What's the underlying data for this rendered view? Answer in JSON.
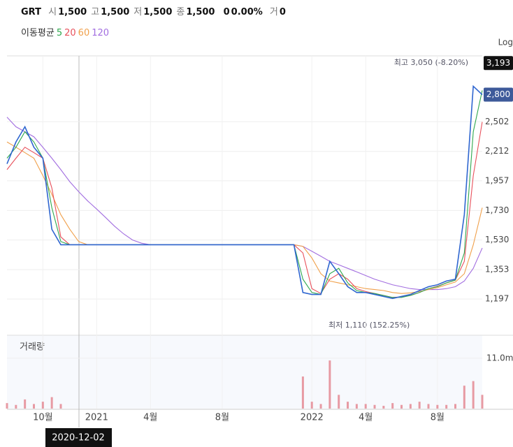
{
  "header": {
    "symbol": "GRT",
    "items": [
      {
        "label": "시",
        "value": "1,500"
      },
      {
        "label": "고",
        "value": "1,500"
      },
      {
        "label": "저",
        "value": "1,500"
      },
      {
        "label": "종",
        "value": "1,500"
      }
    ],
    "change": "0",
    "change_pct": "0.00%",
    "volume_label": "거",
    "volume": "0"
  },
  "chart_data": {
    "type": "line",
    "log_scale": true,
    "scale_label": "Log",
    "legend_title": "이동평균",
    "annotations": {
      "high": "최고 3,050 (-8.20%)",
      "low": "최저 1,110 (152.25%)",
      "crosshair": "2020-12-02"
    },
    "categories": [
      null,
      null,
      null,
      null,
      "10월",
      null,
      null,
      null,
      null,
      null,
      "2021",
      null,
      null,
      null,
      null,
      null,
      "4월",
      null,
      null,
      null,
      null,
      null,
      null,
      null,
      "8월",
      null,
      null,
      null,
      null,
      null,
      null,
      null,
      null,
      null,
      "2022",
      null,
      null,
      null,
      null,
      null,
      "4월",
      null,
      null,
      null,
      null,
      null,
      null,
      null,
      "8월",
      null,
      null,
      null,
      null,
      null
    ],
    "series": [
      {
        "color": "#2f66d0",
        "values": [
          2100,
          2300,
          2450,
          2250,
          2150,
          1600,
          1500,
          1500,
          1500,
          1500,
          1500,
          1500,
          1500,
          1500,
          1500,
          1500,
          1500,
          1500,
          1500,
          1500,
          1500,
          1500,
          1500,
          1500,
          1500,
          1500,
          1500,
          1500,
          1500,
          1500,
          1500,
          1500,
          1500,
          1230,
          1220,
          1220,
          1400,
          1330,
          1260,
          1230,
          1230,
          1220,
          1210,
          1200,
          1210,
          1220,
          1240,
          1260,
          1270,
          1290,
          1300,
          1700,
          2900,
          2800
        ]
      },
      {
        "name": "5",
        "color": "#2ea84f",
        "values": [
          2150,
          2250,
          2400,
          2300,
          2150,
          1750,
          1520,
          1500,
          1500,
          1500,
          1500,
          1500,
          1500,
          1500,
          1500,
          1500,
          1500,
          1500,
          1500,
          1500,
          1500,
          1500,
          1500,
          1500,
          1500,
          1500,
          1500,
          1500,
          1500,
          1500,
          1500,
          1500,
          1500,
          1300,
          1230,
          1220,
          1330,
          1360,
          1280,
          1240,
          1230,
          1225,
          1215,
          1205,
          1205,
          1215,
          1230,
          1250,
          1260,
          1280,
          1295,
          1450,
          2400,
          2850
        ]
      },
      {
        "name": "20",
        "color": "#e8505b",
        "values": [
          2050,
          2150,
          2250,
          2200,
          2150,
          1900,
          1550,
          1500,
          1500,
          1500,
          1500,
          1500,
          1500,
          1500,
          1500,
          1500,
          1500,
          1500,
          1500,
          1500,
          1500,
          1500,
          1500,
          1500,
          1500,
          1500,
          1500,
          1500,
          1500,
          1500,
          1500,
          1500,
          1500,
          1450,
          1250,
          1225,
          1300,
          1330,
          1300,
          1250,
          1235,
          1225,
          1215,
          1205,
          1208,
          1215,
          1230,
          1250,
          1262,
          1280,
          1295,
          1400,
          2000,
          2500
        ]
      },
      {
        "name": "60",
        "color": "#f0a04b",
        "values": [
          2300,
          2250,
          2200,
          2150,
          2000,
          1850,
          1700,
          1600,
          1520,
          1500,
          1500,
          1500,
          1500,
          1500,
          1500,
          1500,
          1500,
          1500,
          1500,
          1500,
          1500,
          1500,
          1500,
          1500,
          1500,
          1500,
          1500,
          1500,
          1500,
          1500,
          1500,
          1500,
          1500,
          1490,
          1420,
          1330,
          1290,
          1280,
          1270,
          1260,
          1250,
          1245,
          1240,
          1230,
          1225,
          1228,
          1235,
          1245,
          1255,
          1270,
          1285,
          1330,
          1500,
          1750
        ]
      },
      {
        "name": "120",
        "color": "#a26ee0",
        "values": [
          2550,
          2450,
          2400,
          2350,
          2250,
          2150,
          2050,
          1950,
          1870,
          1800,
          1740,
          1680,
          1620,
          1570,
          1530,
          1510,
          1500,
          1500,
          1500,
          1500,
          1500,
          1500,
          1500,
          1500,
          1500,
          1500,
          1500,
          1500,
          1500,
          1500,
          1500,
          1500,
          1500,
          1490,
          1460,
          1430,
          1400,
          1380,
          1360,
          1340,
          1320,
          1300,
          1285,
          1270,
          1260,
          1250,
          1245,
          1245,
          1245,
          1250,
          1260,
          1290,
          1360,
          1480
        ]
      },
      {
        "name": "거래량",
        "axis": "y2",
        "color": "#e79aa3",
        "values": [
          1.2,
          0.8,
          2,
          1,
          1.5,
          2.5,
          1,
          0,
          0,
          0,
          0,
          0,
          0,
          0,
          0,
          0,
          0,
          0,
          0,
          0,
          0,
          0,
          0,
          0,
          0,
          0,
          0,
          0,
          0,
          0,
          0,
          0,
          0,
          7,
          1.5,
          1,
          10.5,
          3,
          1.5,
          1,
          1,
          0.8,
          0.6,
          1.2,
          0.8,
          1,
          1.5,
          1,
          0.8,
          0.8,
          1,
          5,
          6,
          3
        ]
      }
    ],
    "ylim": [
      1060,
      3290
    ],
    "yticks": [
      {
        "value": 1197,
        "label": "1,197"
      },
      {
        "value": 1353,
        "label": "1,353"
      },
      {
        "value": 1530,
        "label": "1,530"
      },
      {
        "value": 1730,
        "label": "1,730"
      },
      {
        "value": 1957,
        "label": "1,957"
      },
      {
        "value": 2212,
        "label": "2,212"
      },
      {
        "value": 2502,
        "label": "2,502"
      }
    ],
    "current_price": {
      "value": 2800,
      "label": "2,800"
    },
    "top_price": {
      "value": 3193,
      "label": "3,193"
    },
    "y2lim": [
      0,
      16
    ],
    "y2ticks": [
      {
        "value": 11,
        "label": "11.0m"
      }
    ]
  }
}
